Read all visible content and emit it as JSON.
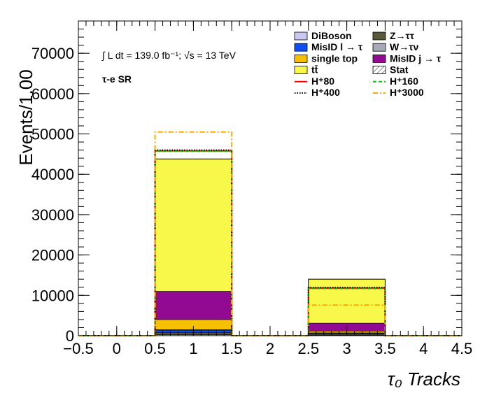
{
  "chart_data": {
    "type": "bar",
    "stacked": true,
    "xlabel": "τ₀ Tracks",
    "ylabel": "Events/1.00",
    "xlim": [
      -0.5,
      4.5
    ],
    "ylim": [
      0,
      78000
    ],
    "x_ticks": [
      "−0.5",
      "0",
      "0.5",
      "1",
      "1.5",
      "2",
      "2.5",
      "3",
      "3.5",
      "4",
      "4.5"
    ],
    "y_ticks": [
      "0",
      "10000",
      "20000",
      "30000",
      "40000",
      "50000",
      "60000",
      "70000"
    ],
    "annotations": {
      "lumi": "∫ L dt = 139.0 fb⁻¹;   √s = 13 TeV",
      "region": "τ-e SR"
    },
    "bins": [
      {
        "low": 0.5,
        "high": 1.5,
        "center": 1
      },
      {
        "low": 2.5,
        "high": 3.5,
        "center": 3
      }
    ],
    "series": [
      {
        "name": "DiBoson",
        "color": "#c8c8f0",
        "values": [
          250,
          120
        ]
      },
      {
        "name": "Z→ττ",
        "color": "#5a5a3a",
        "values": [
          500,
          250
        ]
      },
      {
        "name": "MisID l → τ",
        "color": "#0d4ef2",
        "values": [
          600,
          250
        ]
      },
      {
        "name": "W→τν",
        "color": "#a8a8b8",
        "values": [
          150,
          80
        ]
      },
      {
        "name": "single top",
        "color": "#f5c000",
        "values": [
          2500,
          400
        ]
      },
      {
        "name": "MisID j → τ",
        "color": "#920a92",
        "values": [
          7000,
          2000
        ]
      },
      {
        "name": "tt̄",
        "color": "#f8f84a",
        "values": [
          32800,
          10900
        ]
      }
    ],
    "signals": [
      {
        "name": "H⁺80",
        "color": "#ff0000",
        "style": "solid",
        "values": [
          45800,
          11800
        ]
      },
      {
        "name": "H⁺160",
        "color": "#00cc00",
        "style": "dashed",
        "values": [
          45700,
          11700
        ]
      },
      {
        "name": "H⁺400",
        "color": "#000000",
        "style": "dotted",
        "values": [
          46000,
          11900
        ]
      },
      {
        "name": "H⁺3000",
        "color": "#ffaa00",
        "style": "dashdot",
        "values": [
          50500,
          7600
        ]
      }
    ],
    "stat_label": "Stat",
    "legend_placement": "top-right"
  }
}
